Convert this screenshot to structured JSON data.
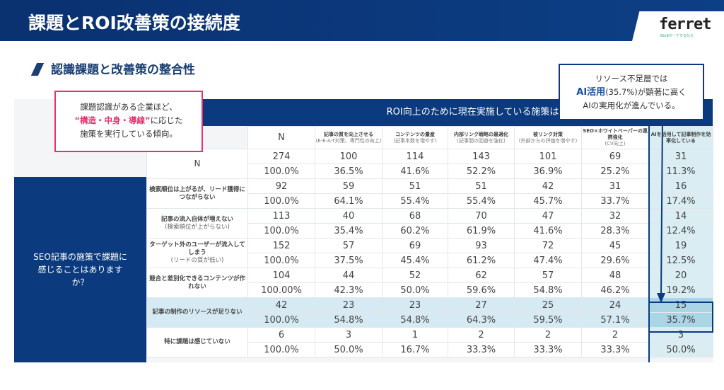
{
  "header": {
    "title": "課題とROI改善策の接続度",
    "logo": "ferret",
    "logo_tagline": "BtoBマーケするなら"
  },
  "section_title": "認識課題と改善策の整合性",
  "callout_left": {
    "line1": "課題認識がある企業ほど、",
    "emphasis": "“構造・中身・導線”",
    "line2_rest": "に応じた",
    "line3": "施策を実行している傾向。"
  },
  "callout_right": {
    "line1": "リソース不足層では",
    "emphasis": "AI活用",
    "line2_rest": "(35.7%)が顕著に高く",
    "line3": "AIの実用化が進んでいる。"
  },
  "table": {
    "question_columns": "ROI向上のために現在実施している施策はありますか？",
    "question_rows": "SEO記事の施策で課題に感じることはありますか？",
    "columns": [
      {
        "main": "N",
        "sub": ""
      },
      {
        "main": "記事の質を向上させる",
        "sub": "(E-E-A-T対策、専門性の向上)"
      },
      {
        "main": "コンテンツの量産",
        "sub": "(記事本数を増やす)"
      },
      {
        "main": "内部リンク戦略の最適化",
        "sub": "(記事間の回遊を強化)"
      },
      {
        "main": "被リンク対策",
        "sub": "(外部からの評価を増やす)"
      },
      {
        "main": "SEO×ホワイトペーパーの連携強化",
        "sub": "(CV向上)"
      },
      {
        "main": "AIを活用して記事制作を効率化している",
        "sub": ""
      }
    ],
    "rows": [
      {
        "label": "N",
        "sub": "",
        "counts": [
          "274",
          "100",
          "114",
          "143",
          "101",
          "69",
          "31"
        ],
        "pcts": [
          "100.0%",
          "36.5%",
          "41.6%",
          "52.2%",
          "36.9%",
          "25.2%",
          "11.3%"
        ]
      },
      {
        "label": "検索順位は上がるが、リード獲得につながらない",
        "sub": "",
        "counts": [
          "92",
          "59",
          "51",
          "51",
          "42",
          "31",
          "16"
        ],
        "pcts": [
          "100.0%",
          "64.1%",
          "55.4%",
          "55.4%",
          "45.7%",
          "33.7%",
          "17.4%"
        ]
      },
      {
        "label": "記事の流入自体が増えない",
        "sub": "(検索順位が上がらない)",
        "counts": [
          "113",
          "40",
          "68",
          "70",
          "47",
          "32",
          "14"
        ],
        "pcts": [
          "100.0%",
          "35.4%",
          "60.2%",
          "61.9%",
          "41.6%",
          "28.3%",
          "12.4%"
        ]
      },
      {
        "label": "ターゲット外のユーザーが流入してしまう",
        "sub": "(リードの質が低い)",
        "counts": [
          "152",
          "57",
          "69",
          "93",
          "72",
          "45",
          "19"
        ],
        "pcts": [
          "100.0%",
          "37.5%",
          "45.4%",
          "61.2%",
          "47.4%",
          "29.6%",
          "12.5%"
        ]
      },
      {
        "label": "競合と差別化できるコンテンツが作れない",
        "sub": "",
        "counts": [
          "104",
          "44",
          "52",
          "62",
          "57",
          "48",
          "20"
        ],
        "pcts": [
          "100.00%",
          "42.3%",
          "50.0%",
          "59.6%",
          "54.8%",
          "46.2%",
          "19.2%"
        ]
      },
      {
        "label": "記事の制作のリソースが足りない",
        "sub": "",
        "counts": [
          "42",
          "23",
          "23",
          "27",
          "25",
          "24",
          "15"
        ],
        "pcts": [
          "100.0%",
          "54.8%",
          "54.8%",
          "64.3%",
          "59.5%",
          "57.1%",
          "35.7%"
        ],
        "highlight": true
      },
      {
        "label": "特に課題は感じていない",
        "sub": "",
        "counts": [
          "6",
          "3",
          "1",
          "2",
          "2",
          "2",
          "3"
        ],
        "pcts": [
          "100.0%",
          "50.0%",
          "16.7%",
          "33.3%",
          "33.3%",
          "33.3%",
          "50.0%"
        ]
      }
    ]
  },
  "colors": {
    "navy": "#0b3a7e",
    "pink": "#e6336f",
    "highlight": "#d5eaf2"
  }
}
